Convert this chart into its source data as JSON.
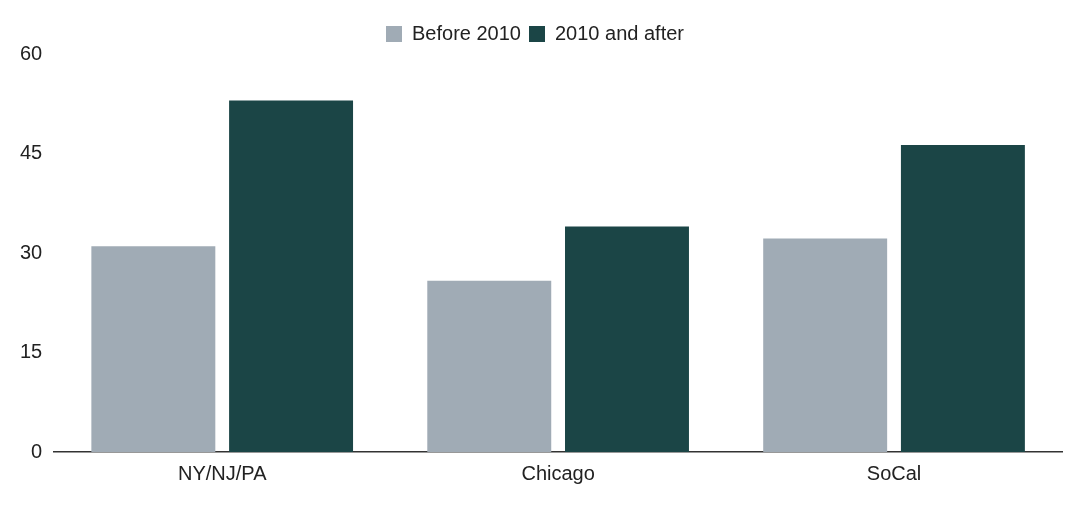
{
  "chart_data": {
    "type": "bar",
    "categories": [
      "NY/NJ/PA",
      "Chicago",
      "SoCal"
    ],
    "series": [
      {
        "name": "Before 2010",
        "color": "#a0abb5",
        "values": [
          31.0,
          25.8,
          32.2
        ]
      },
      {
        "name": "2010 and after",
        "color": "#1b4546",
        "values": [
          53.0,
          34.0,
          46.3
        ]
      }
    ],
    "ylim": [
      0,
      60
    ],
    "yticks": [
      0,
      15,
      30,
      45,
      60
    ],
    "grid": false,
    "legend": "top"
  }
}
